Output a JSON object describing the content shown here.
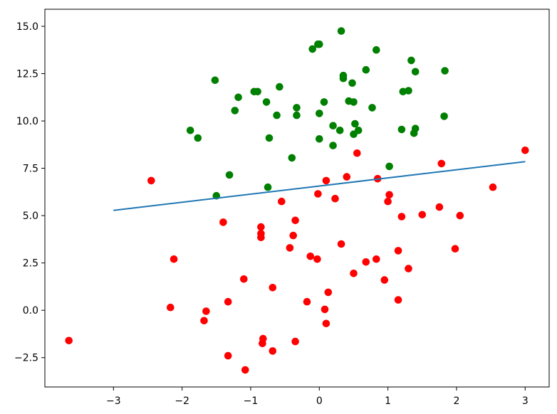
{
  "chart_data": {
    "type": "scatter",
    "title": "",
    "xlabel": "",
    "ylabel": "",
    "xlim": [
      -4.0,
      3.35
    ],
    "ylim": [
      -4.05,
      15.9
    ],
    "xticks": [
      -3,
      -2,
      -1,
      0,
      1,
      2,
      3
    ],
    "xtick_labels": [
      "−3",
      "−2",
      "−1",
      "0",
      "1",
      "2",
      "3"
    ],
    "yticks": [
      -2.5,
      0.0,
      2.5,
      5.0,
      7.5,
      10.0,
      12.5,
      15.0
    ],
    "ytick_labels": [
      "−2.5",
      "0.0",
      "2.5",
      "5.0",
      "7.5",
      "10.0",
      "12.5",
      "15.0"
    ],
    "grid": false,
    "series": [
      {
        "color": "#008000",
        "marker": "circle",
        "points": [
          [
            0.32,
            14.75
          ],
          [
            -0.02,
            14.05
          ],
          [
            0.0,
            14.05
          ],
          [
            -0.1,
            13.8
          ],
          [
            0.83,
            13.75
          ],
          [
            1.34,
            13.2
          ],
          [
            -1.52,
            12.15
          ],
          [
            0.68,
            12.7
          ],
          [
            1.4,
            12.6
          ],
          [
            1.83,
            12.65
          ],
          [
            0.35,
            12.4
          ],
          [
            0.35,
            12.25
          ],
          [
            0.48,
            12.0
          ],
          [
            -0.58,
            11.8
          ],
          [
            -0.95,
            11.55
          ],
          [
            -0.9,
            11.55
          ],
          [
            -1.18,
            11.25
          ],
          [
            1.22,
            11.55
          ],
          [
            1.3,
            11.6
          ],
          [
            0.07,
            11.0
          ],
          [
            0.43,
            11.05
          ],
          [
            0.5,
            11.0
          ],
          [
            -0.77,
            11.0
          ],
          [
            -1.23,
            10.55
          ],
          [
            -0.33,
            10.7
          ],
          [
            0.77,
            10.7
          ],
          [
            -0.62,
            10.3
          ],
          [
            -0.33,
            10.3
          ],
          [
            0.0,
            10.4
          ],
          [
            1.82,
            10.25
          ],
          [
            -1.88,
            9.5
          ],
          [
            -1.77,
            9.1
          ],
          [
            -0.73,
            9.1
          ],
          [
            0.0,
            9.05
          ],
          [
            0.2,
            9.75
          ],
          [
            0.3,
            9.5
          ],
          [
            0.5,
            9.3
          ],
          [
            0.52,
            9.85
          ],
          [
            0.57,
            9.5
          ],
          [
            1.2,
            9.55
          ],
          [
            1.38,
            9.35
          ],
          [
            1.4,
            9.6
          ],
          [
            0.2,
            8.7
          ],
          [
            -0.4,
            8.05
          ],
          [
            -1.31,
            7.15
          ],
          [
            1.02,
            7.6
          ],
          [
            -0.75,
            6.5
          ],
          [
            -1.5,
            6.05
          ]
        ]
      },
      {
        "color": "#ff0000",
        "marker": "circle",
        "points": [
          [
            3.0,
            8.45
          ],
          [
            0.55,
            8.3
          ],
          [
            1.78,
            7.75
          ],
          [
            -2.45,
            6.85
          ],
          [
            0.1,
            6.85
          ],
          [
            0.4,
            7.05
          ],
          [
            0.85,
            6.95
          ],
          [
            2.53,
            6.5
          ],
          [
            -0.55,
            5.75
          ],
          [
            0.23,
            5.9
          ],
          [
            -0.02,
            6.15
          ],
          [
            1.02,
            6.1
          ],
          [
            1.0,
            5.75
          ],
          [
            1.2,
            4.95
          ],
          [
            1.5,
            5.05
          ],
          [
            1.75,
            5.45
          ],
          [
            2.05,
            5.0
          ],
          [
            -1.4,
            4.65
          ],
          [
            -0.35,
            4.75
          ],
          [
            -0.85,
            4.4
          ],
          [
            -0.85,
            4.05
          ],
          [
            -0.85,
            3.85
          ],
          [
            -0.38,
            3.95
          ],
          [
            -0.43,
            3.3
          ],
          [
            0.32,
            3.5
          ],
          [
            -2.12,
            2.7
          ],
          [
            -0.13,
            2.85
          ],
          [
            -0.03,
            2.7
          ],
          [
            0.68,
            2.55
          ],
          [
            0.83,
            2.7
          ],
          [
            1.15,
            3.15
          ],
          [
            1.98,
            3.25
          ],
          [
            1.3,
            2.2
          ],
          [
            0.5,
            1.95
          ],
          [
            -1.1,
            1.65
          ],
          [
            0.95,
            1.6
          ],
          [
            -0.68,
            1.2
          ],
          [
            0.13,
            0.95
          ],
          [
            -1.33,
            0.45
          ],
          [
            -0.18,
            0.45
          ],
          [
            1.15,
            0.55
          ],
          [
            -2.17,
            0.15
          ],
          [
            -1.65,
            -0.05
          ],
          [
            -1.68,
            -0.55
          ],
          [
            0.08,
            0.05
          ],
          [
            0.1,
            -0.7
          ],
          [
            -3.65,
            -1.6
          ],
          [
            -0.82,
            -1.5
          ],
          [
            -0.83,
            -1.75
          ],
          [
            -0.35,
            -1.65
          ],
          [
            -0.68,
            -2.15
          ],
          [
            -1.33,
            -2.4
          ],
          [
            -1.08,
            -3.15
          ]
        ]
      },
      {
        "type": "line",
        "color": "#1f77b4",
        "points": [
          [
            -3,
            5.28
          ],
          [
            3,
            7.85
          ]
        ]
      }
    ]
  }
}
